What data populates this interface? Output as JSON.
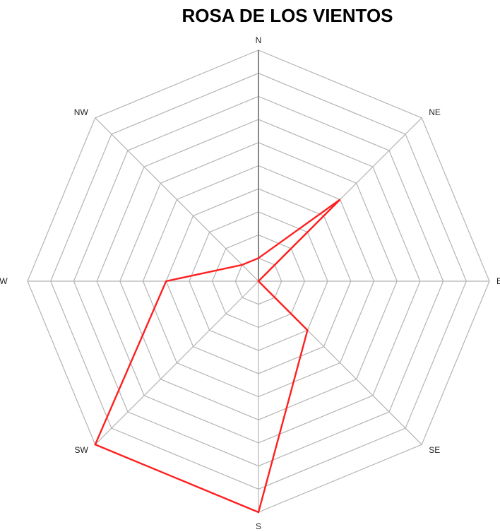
{
  "chart_data": {
    "type": "radar",
    "title": "ROSA DE LOS VIENTOS",
    "categories": [
      "N",
      "NE",
      "E",
      "SE",
      "S",
      "SW",
      "W",
      "NW"
    ],
    "values": [
      1,
      5,
      0,
      3,
      10,
      10,
      4,
      1
    ],
    "rlim": [
      0,
      10
    ],
    "ring_count": 10,
    "grid": true,
    "legend": "none",
    "colors": {
      "series": "#ff1f1f",
      "grid": "#b4b4b4",
      "axis": "#888888"
    }
  }
}
